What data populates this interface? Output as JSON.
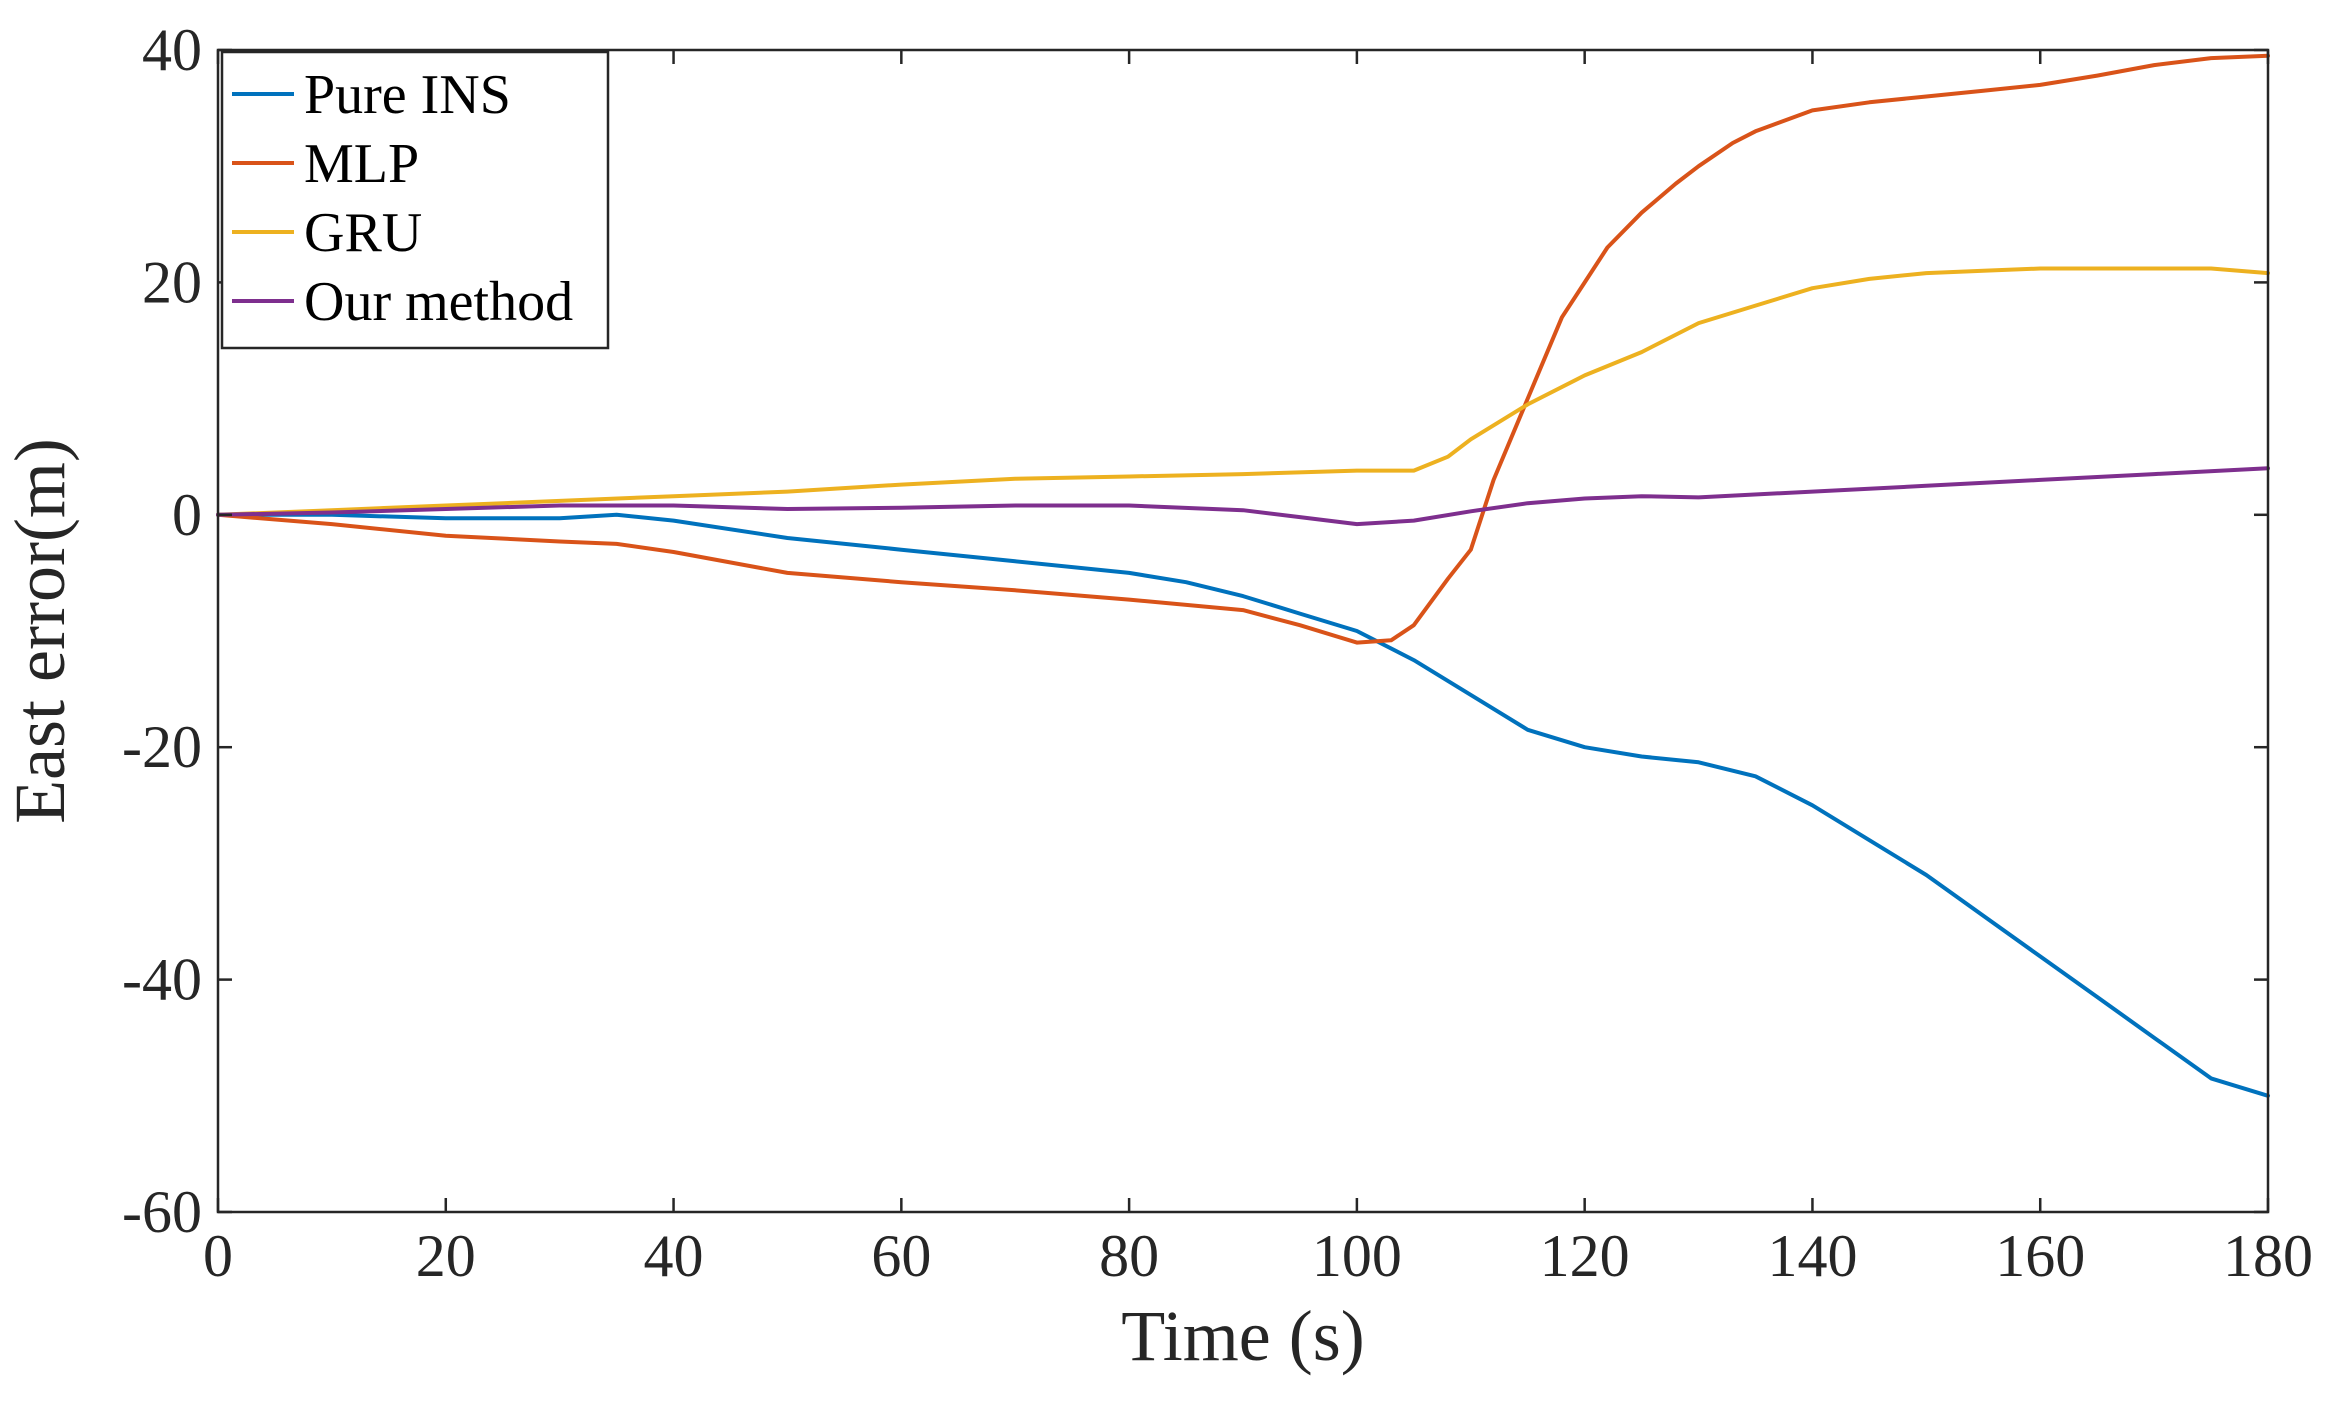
{
  "chart_data": {
    "type": "line",
    "title": "",
    "xlabel": "Time (s)",
    "ylabel": "East error(m)",
    "xlim": [
      0,
      180
    ],
    "ylim": [
      -60,
      40
    ],
    "xticks": [
      0,
      20,
      40,
      60,
      80,
      100,
      120,
      140,
      160,
      180
    ],
    "yticks": [
      -60,
      -40,
      -20,
      0,
      20,
      40
    ],
    "xtick_labels": [
      "0",
      "20",
      "40",
      "60",
      "80",
      "100",
      "120",
      "140",
      "160",
      "180"
    ],
    "ytick_labels": [
      "-60",
      "-40",
      "-20",
      "0",
      "20",
      "40"
    ],
    "grid": false,
    "legend_position": "top-left",
    "series": [
      {
        "name": "Pure INS",
        "color": "#0072BD",
        "x": [
          0,
          10,
          20,
          30,
          35,
          40,
          50,
          60,
          70,
          80,
          85,
          90,
          95,
          100,
          105,
          110,
          115,
          120,
          125,
          130,
          135,
          140,
          145,
          150,
          155,
          160,
          165,
          170,
          175,
          180
        ],
        "y": [
          0,
          0,
          -0.3,
          -0.3,
          0,
          -0.5,
          -2,
          -3,
          -4,
          -5,
          -5.8,
          -7,
          -8.5,
          -10,
          -12.5,
          -15.5,
          -18.5,
          -20,
          -20.8,
          -21.3,
          -22.5,
          -25,
          -28,
          -31,
          -34.5,
          -38,
          -41.5,
          -45,
          -48.5,
          -50
        ]
      },
      {
        "name": "MLP",
        "color": "#D95319",
        "x": [
          0,
          10,
          20,
          30,
          35,
          40,
          50,
          60,
          70,
          80,
          90,
          95,
          100,
          103,
          105,
          108,
          110,
          112,
          115,
          118,
          120,
          122,
          125,
          128,
          130,
          133,
          135,
          140,
          145,
          150,
          155,
          160,
          165,
          170,
          175,
          180
        ],
        "y": [
          0,
          -0.8,
          -1.8,
          -2.3,
          -2.5,
          -3.2,
          -5,
          -5.8,
          -6.5,
          -7.3,
          -8.2,
          -9.5,
          -11,
          -10.8,
          -9.5,
          -5.5,
          -3,
          3,
          10,
          17,
          20,
          23,
          26,
          28.5,
          30,
          32,
          33,
          34.8,
          35.5,
          36,
          36.5,
          37,
          37.8,
          38.7,
          39.3,
          39.5
        ]
      },
      {
        "name": "GRU",
        "color": "#EDB120",
        "x": [
          0,
          10,
          20,
          30,
          40,
          50,
          60,
          70,
          80,
          90,
          100,
          105,
          108,
          110,
          115,
          120,
          125,
          130,
          135,
          140,
          145,
          150,
          155,
          160,
          165,
          170,
          175,
          180
        ],
        "y": [
          0,
          0.4,
          0.8,
          1.2,
          1.6,
          2,
          2.6,
          3.1,
          3.3,
          3.5,
          3.8,
          3.8,
          5,
          6.5,
          9.5,
          12,
          14,
          16.5,
          18,
          19.5,
          20.3,
          20.8,
          21,
          21.2,
          21.2,
          21.2,
          21.2,
          20.8
        ]
      },
      {
        "name": "Our method",
        "color": "#7E2F8E",
        "x": [
          0,
          10,
          20,
          30,
          40,
          50,
          60,
          70,
          80,
          90,
          95,
          100,
          105,
          110,
          115,
          120,
          125,
          130,
          140,
          150,
          160,
          170,
          180
        ],
        "y": [
          0,
          0.2,
          0.5,
          0.8,
          0.8,
          0.5,
          0.6,
          0.8,
          0.8,
          0.4,
          -0.2,
          -0.8,
          -0.5,
          0.3,
          1,
          1.4,
          1.6,
          1.5,
          2,
          2.5,
          3,
          3.5,
          4
        ]
      }
    ]
  }
}
